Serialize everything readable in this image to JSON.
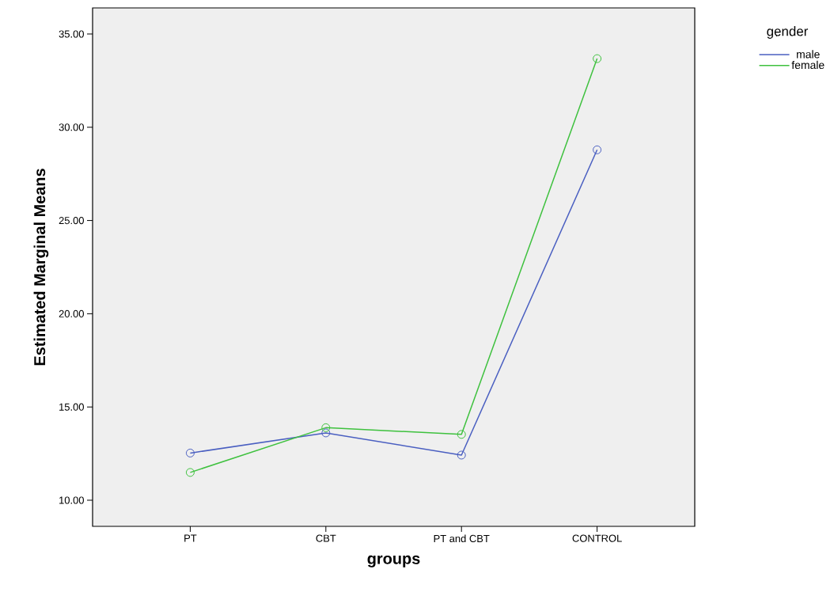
{
  "chart_data": {
    "type": "line",
    "xlabel": "groups",
    "ylabel": "Estimated Marginal Means",
    "legend_title": "gender",
    "categories": [
      "PT",
      "CBT",
      "PT and CBT",
      "CONTROL"
    ],
    "series": [
      {
        "name": "male",
        "color": "#4a5fc1",
        "values": [
          12.53,
          13.61,
          12.42,
          28.79
        ]
      },
      {
        "name": "female",
        "color": "#3ec13e",
        "values": [
          11.49,
          13.89,
          13.53,
          33.68
        ]
      }
    ],
    "ylim": [
      8.6,
      36.4
    ],
    "yticks": [
      {
        "value": 10,
        "label": "10.00"
      },
      {
        "value": 15,
        "label": "15.00"
      },
      {
        "value": 20,
        "label": "20.00"
      },
      {
        "value": 25,
        "label": "25.00"
      },
      {
        "value": 30,
        "label": "30.00"
      },
      {
        "value": 35,
        "label": "35.00"
      }
    ],
    "legend": "top right",
    "marker": "circle",
    "line_style": "solid"
  }
}
